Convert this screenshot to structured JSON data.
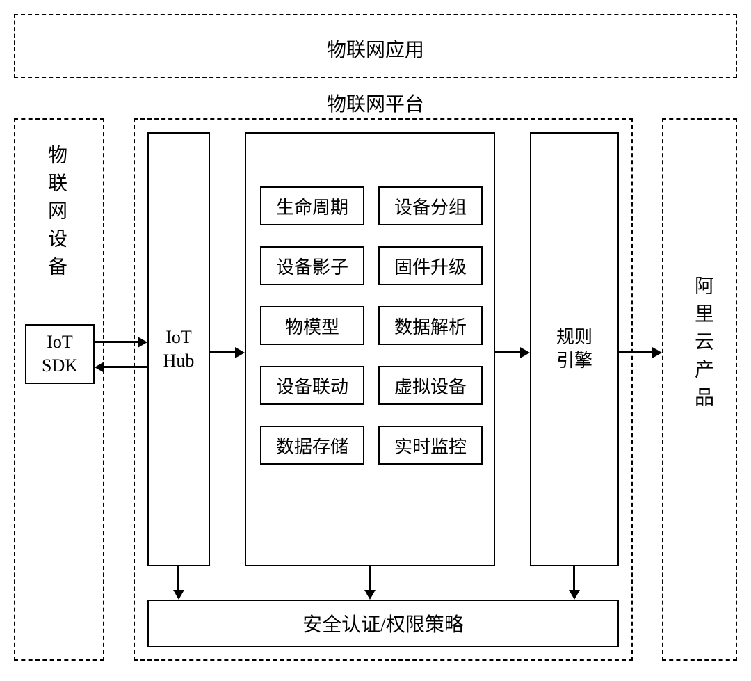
{
  "diagram": {
    "type": "architecture-block-diagram",
    "background_color": "#ffffff",
    "line_color": "#000000",
    "font_family": "SimSun",
    "top_box": {
      "label": "物联网应用",
      "fontsize": 28
    },
    "platform_title": {
      "label": "物联网平台",
      "fontsize": 28
    },
    "left_box": {
      "title": "物联网设备",
      "title_fontsize": 28,
      "sdk_box": {
        "line1": "IoT",
        "line2": "SDK",
        "fontsize": 26
      }
    },
    "platform": {
      "iot_hub": {
        "line1": "IoT",
        "line2": "Hub",
        "fontsize": 26
      },
      "features_grid": {
        "rows": [
          [
            "生命周期",
            "设备分组"
          ],
          [
            "设备影子",
            "固件升级"
          ],
          [
            "物模型",
            "数据解析"
          ],
          [
            "设备联动",
            "虚拟设备"
          ],
          [
            "数据存储",
            "实时监控"
          ]
        ],
        "cell_fontsize": 26
      },
      "rules_engine": {
        "line1": "规则",
        "line2": "引擎",
        "fontsize": 26
      },
      "security": {
        "label": "安全认证/权限策略",
        "fontsize": 28
      }
    },
    "right_box": {
      "title": "阿里云产品",
      "title_fontsize": 28
    }
  }
}
